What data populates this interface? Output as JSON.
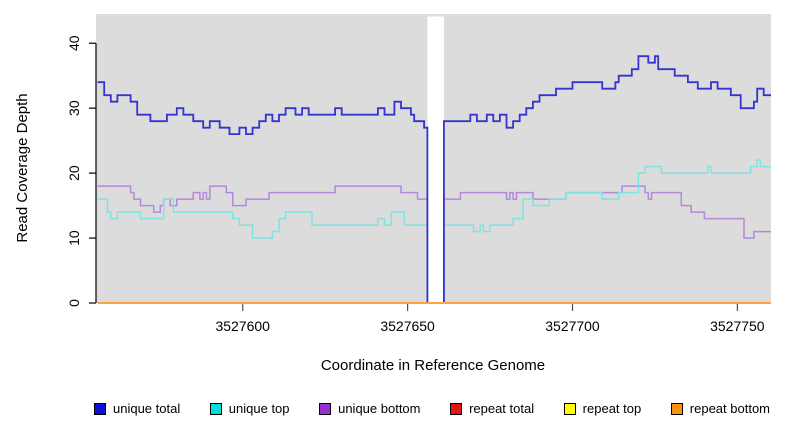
{
  "y_axis": {
    "label": "Read Coverage Depth",
    "ticks": [
      0,
      10,
      20,
      30,
      40
    ]
  },
  "x_axis": {
    "label": "Coordinate in Reference Genome",
    "ticks": [
      3527600,
      3527650,
      3527700,
      3527750
    ]
  },
  "legend": {
    "position": "bottom"
  },
  "chart_data": {
    "type": "line",
    "style": "step",
    "title": "",
    "xlabel": "Coordinate in Reference Genome",
    "ylabel": "Read Coverage Depth",
    "xlim": [
      3527555.5,
      3527760.2
    ],
    "ylim": [
      0,
      44.5
    ],
    "xticks": [
      3527600,
      3527650,
      3527700,
      3527750
    ],
    "yticks": [
      0,
      10,
      20,
      30,
      40
    ],
    "grid": false,
    "plot_background": "#dcdcdc",
    "gap_region": {
      "x_start": 3527656,
      "x_end": 3527661,
      "color": "#ffffff",
      "note": "white vertical band where coverage drops to 0"
    },
    "draw_order": [
      2,
      1,
      0,
      3,
      4,
      5
    ],
    "series": [
      {
        "name": "unique total",
        "color": "#0f0fd6",
        "line_color": "#3434d0",
        "line_width": 1.8,
        "points": [
          [
            3527556,
            34
          ],
          [
            3527558,
            32
          ],
          [
            3527560,
            31
          ],
          [
            3527562,
            32
          ],
          [
            3527566,
            31
          ],
          [
            3527568,
            29
          ],
          [
            3527572,
            28
          ],
          [
            3527577,
            29
          ],
          [
            3527580,
            30
          ],
          [
            3527582,
            29
          ],
          [
            3527585,
            28
          ],
          [
            3527588,
            27
          ],
          [
            3527590,
            28
          ],
          [
            3527593,
            27
          ],
          [
            3527596,
            26
          ],
          [
            3527599,
            27
          ],
          [
            3527601,
            26
          ],
          [
            3527603,
            27
          ],
          [
            3527605,
            28
          ],
          [
            3527607,
            29
          ],
          [
            3527609,
            28
          ],
          [
            3527611,
            29
          ],
          [
            3527613,
            30
          ],
          [
            3527616,
            29
          ],
          [
            3527618,
            30
          ],
          [
            3527620,
            29
          ],
          [
            3527628,
            30
          ],
          [
            3527630,
            29
          ],
          [
            3527641,
            30
          ],
          [
            3527643,
            29
          ],
          [
            3527646,
            31
          ],
          [
            3527648,
            30
          ],
          [
            3527651,
            29
          ],
          [
            3527652,
            28
          ],
          [
            3527655,
            27
          ],
          [
            3527656,
            0
          ],
          [
            3527661,
            28
          ],
          [
            3527669,
            29
          ],
          [
            3527671,
            28
          ],
          [
            3527674,
            29
          ],
          [
            3527676,
            28
          ],
          [
            3527678,
            29
          ],
          [
            3527680,
            27
          ],
          [
            3527682,
            28
          ],
          [
            3527684,
            29
          ],
          [
            3527686,
            30
          ],
          [
            3527688,
            31
          ],
          [
            3527690,
            32
          ],
          [
            3527695,
            33
          ],
          [
            3527700,
            34
          ],
          [
            3527709,
            33
          ],
          [
            3527713,
            34
          ],
          [
            3527714,
            35
          ],
          [
            3527718,
            36
          ],
          [
            3527720,
            38
          ],
          [
            3527723,
            37
          ],
          [
            3527725,
            38
          ],
          [
            3527726,
            36
          ],
          [
            3527731,
            35
          ],
          [
            3527735,
            34
          ],
          [
            3527738,
            33
          ],
          [
            3527742,
            34
          ],
          [
            3527744,
            33
          ],
          [
            3527748,
            32
          ],
          [
            3527751,
            30
          ],
          [
            3527755,
            31
          ],
          [
            3527756,
            33
          ],
          [
            3527758,
            32
          ]
        ]
      },
      {
        "name": "unique top",
        "color": "#00dede",
        "line_color": "#7fe3e3",
        "line_width": 1.5,
        "points": [
          [
            3527556,
            16
          ],
          [
            3527559,
            14
          ],
          [
            3527560,
            13
          ],
          [
            3527562,
            14
          ],
          [
            3527569,
            13
          ],
          [
            3527576,
            16
          ],
          [
            3527579,
            14
          ],
          [
            3527597,
            13
          ],
          [
            3527599,
            12
          ],
          [
            3527603,
            10
          ],
          [
            3527609,
            11
          ],
          [
            3527611,
            13
          ],
          [
            3527613,
            14
          ],
          [
            3527621,
            12
          ],
          [
            3527641,
            13
          ],
          [
            3527643,
            12
          ],
          [
            3527645,
            14
          ],
          [
            3527649,
            12
          ],
          [
            3527656,
            0
          ],
          [
            3527661,
            12
          ],
          [
            3527670,
            11
          ],
          [
            3527672,
            12
          ],
          [
            3527673,
            11
          ],
          [
            3527675,
            12
          ],
          [
            3527682,
            13
          ],
          [
            3527685,
            16
          ],
          [
            3527688,
            15
          ],
          [
            3527693,
            16
          ],
          [
            3527698,
            17
          ],
          [
            3527709,
            16
          ],
          [
            3527714,
            17
          ],
          [
            3527720,
            20
          ],
          [
            3527722,
            21
          ],
          [
            3527727,
            20
          ],
          [
            3527741,
            21
          ],
          [
            3527742,
            20
          ],
          [
            3527754,
            21
          ],
          [
            3527756,
            22
          ],
          [
            3527757,
            21
          ]
        ]
      },
      {
        "name": "unique bottom",
        "color": "#9a2fd6",
        "line_color": "#b588d8",
        "line_width": 1.5,
        "points": [
          [
            3527556,
            18
          ],
          [
            3527566,
            17
          ],
          [
            3527567,
            16
          ],
          [
            3527569,
            15
          ],
          [
            3527573,
            14
          ],
          [
            3527575,
            15
          ],
          [
            3527576,
            16
          ],
          [
            3527578,
            15
          ],
          [
            3527580,
            16
          ],
          [
            3527585,
            17
          ],
          [
            3527587,
            16
          ],
          [
            3527588,
            17
          ],
          [
            3527589,
            16
          ],
          [
            3527590,
            18
          ],
          [
            3527595,
            17
          ],
          [
            3527597,
            15
          ],
          [
            3527601,
            16
          ],
          [
            3527608,
            17
          ],
          [
            3527628,
            18
          ],
          [
            3527648,
            17
          ],
          [
            3527653,
            16
          ],
          [
            3527656,
            0
          ],
          [
            3527661,
            16
          ],
          [
            3527666,
            17
          ],
          [
            3527680,
            16
          ],
          [
            3527681,
            17
          ],
          [
            3527682,
            16
          ],
          [
            3527683,
            17
          ],
          [
            3527688,
            16
          ],
          [
            3527698,
            17
          ],
          [
            3527715,
            18
          ],
          [
            3527722,
            17
          ],
          [
            3527723,
            16
          ],
          [
            3527724,
            17
          ],
          [
            3527733,
            15
          ],
          [
            3527736,
            14
          ],
          [
            3527740,
            13
          ],
          [
            3527752,
            10
          ],
          [
            3527755,
            11
          ]
        ]
      },
      {
        "name": "repeat total",
        "color": "#e51212",
        "line_color": "#e51212",
        "line_width": 1.5,
        "points": [
          [
            3527556,
            0
          ]
        ]
      },
      {
        "name": "repeat top",
        "color": "#ffff00",
        "line_color": "#ffff00",
        "line_width": 1.5,
        "points": [
          [
            3527556,
            0
          ]
        ]
      },
      {
        "name": "repeat bottom",
        "color": "#f6920e",
        "line_color": "#ffa246",
        "line_width": 2,
        "points": [
          [
            3527556,
            0
          ]
        ]
      }
    ]
  }
}
